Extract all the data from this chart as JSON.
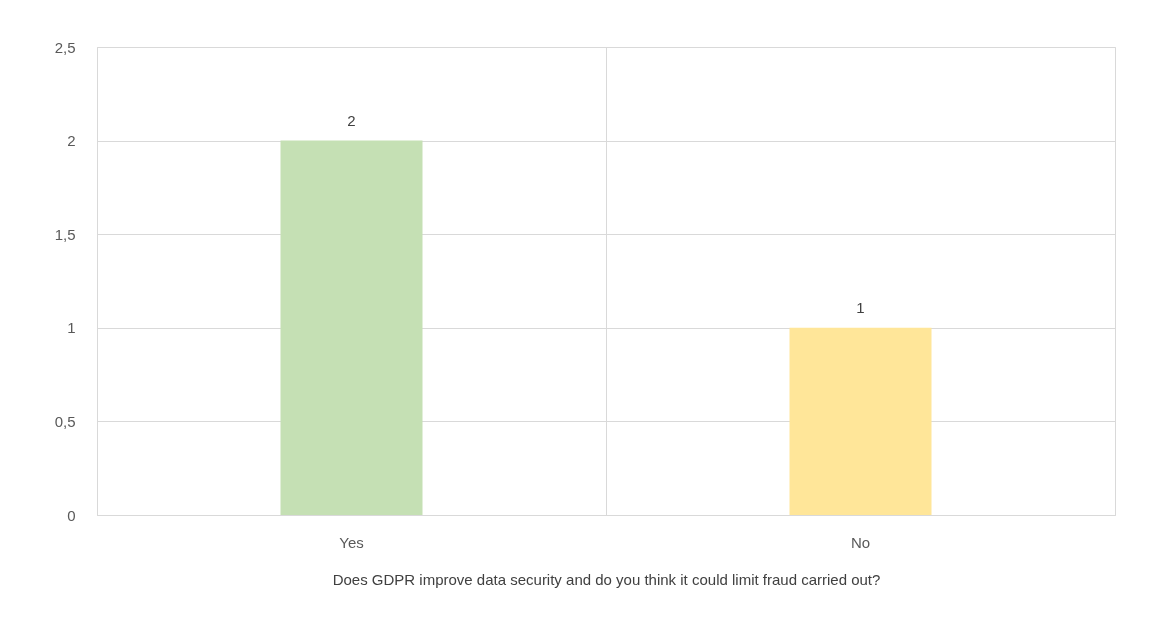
{
  "chart_data": {
    "type": "bar",
    "xlabel": "Does GDPR improve data security and do you think it could limit fraud carried out?",
    "categories": [
      "Yes",
      "No"
    ],
    "values": [
      2,
      1
    ],
    "colors": [
      "#c5e0b4",
      "#ffe699"
    ],
    "ylim": [
      0,
      2.5
    ],
    "yticks": [
      0,
      {
        "value": 0.5,
        "label": "0,5"
      },
      1,
      {
        "value": 1.5,
        "label": "1,5"
      },
      2,
      {
        "value": 2.5,
        "label": "2,5"
      }
    ],
    "grid": true,
    "data_labels": true
  }
}
